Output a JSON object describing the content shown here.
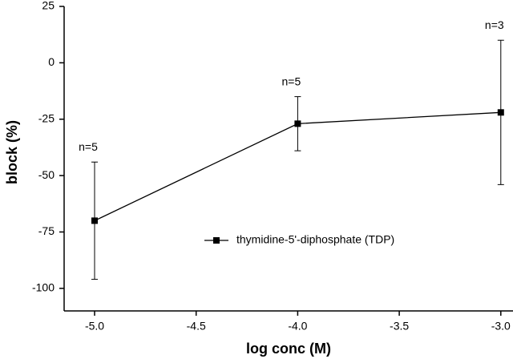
{
  "chart_data": {
    "type": "line",
    "xlabel": "log conc (M)",
    "ylabel": "block (%)",
    "x": [
      -5,
      -4,
      -3
    ],
    "series": [
      {
        "name": "thymidine-5'-diphosphate (TDP)",
        "color": "#000000",
        "values": [
          -70,
          -27,
          -22
        ],
        "errors": [
          26,
          12,
          32
        ],
        "point_labels": [
          "n=5",
          "n=5",
          "n=3"
        ]
      }
    ],
    "xlim": [
      -5.15,
      -2.94
    ],
    "xticks": [
      {
        "value": -5,
        "label": "-5.0"
      },
      -4.5,
      {
        "value": -4,
        "label": "-4.0"
      },
      -3.5,
      {
        "value": -3,
        "label": "-3.0"
      }
    ],
    "ylim": [
      -110,
      25
    ],
    "yticks": [
      25,
      0,
      -25,
      -50,
      -75,
      -100
    ],
    "grid": false,
    "legend": "center"
  }
}
